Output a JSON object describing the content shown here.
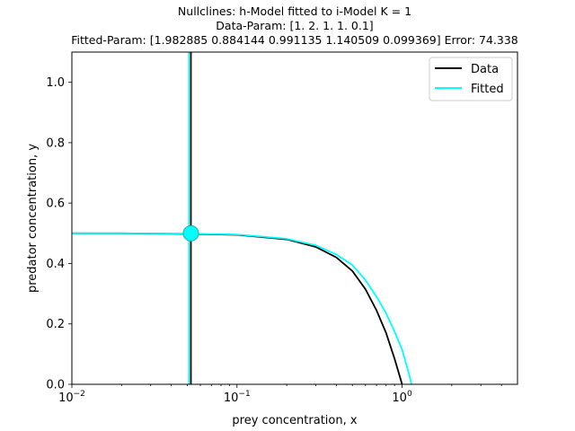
{
  "chart_data": {
    "type": "line",
    "title_lines": [
      "Nullclines: h-Model fitted to i-Model K = 1",
      "Data-Param: [1.  2.  1.  1.  0.1]",
      "Fitted-Param: [1.982885 0.884144 0.991135 1.140509 0.099369] Error: 74.338"
    ],
    "xlabel": "prey concentration, x",
    "ylabel": "predator concentration, y",
    "xscale": "log",
    "xlim": [
      0.01,
      5
    ],
    "ylim": [
      0,
      1.1
    ],
    "x_ticks": [
      0.01,
      0.1,
      1
    ],
    "y_ticks": [
      0.0,
      0.2,
      0.4,
      0.6,
      0.8,
      1.0
    ],
    "grid": false,
    "legend_position": "top-right",
    "series": [
      {
        "name": "Data",
        "color": "#000000",
        "curve": {
          "x": [
            0.01,
            0.02,
            0.05,
            0.1,
            0.2,
            0.3,
            0.4,
            0.5,
            0.6,
            0.7,
            0.8,
            0.9,
            1.0
          ],
          "y": [
            0.5,
            0.5,
            0.498,
            0.495,
            0.48,
            0.455,
            0.42,
            0.375,
            0.315,
            0.245,
            0.17,
            0.085,
            0.0
          ]
        },
        "vertical_nullcline_x": 0.0526
      },
      {
        "name": "Fitted",
        "color": "#00ffff",
        "curve": {
          "x": [
            0.01,
            0.02,
            0.05,
            0.1,
            0.2,
            0.3,
            0.4,
            0.5,
            0.6,
            0.7,
            0.8,
            0.9,
            1.0,
            1.1,
            1.14
          ],
          "y": [
            0.5,
            0.5,
            0.499,
            0.496,
            0.482,
            0.46,
            0.43,
            0.395,
            0.345,
            0.29,
            0.235,
            0.175,
            0.115,
            0.035,
            0.0
          ]
        },
        "vertical_nullcline_x": 0.0512
      }
    ],
    "equilibrium_point": {
      "x": 0.0526,
      "y": 0.5,
      "color": "#00ffff"
    }
  }
}
